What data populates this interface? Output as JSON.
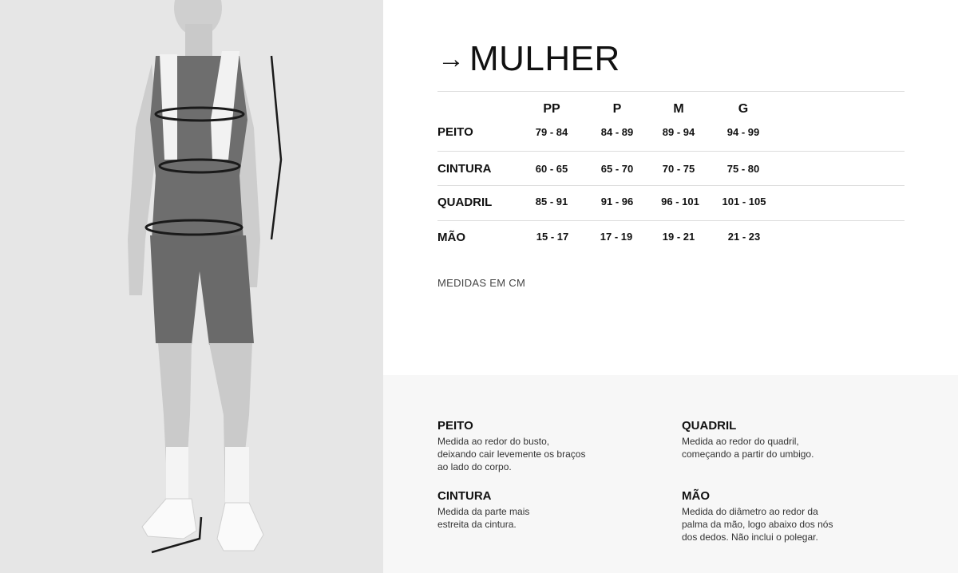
{
  "title": "MULHER",
  "title_icon": "arrow-right-icon",
  "table": {
    "columns": [
      "PP",
      "P",
      "M",
      "G"
    ],
    "rows": [
      {
        "label": "PEITO",
        "values": [
          "79 - 84",
          "84 - 89",
          "89 - 94",
          "94 - 99"
        ]
      },
      {
        "label": "CINTURA",
        "values": [
          "60 - 65",
          "65 - 70",
          "70 - 75",
          "75 - 80"
        ]
      },
      {
        "label": "QUADRIL",
        "values": [
          "85 - 91",
          "91 - 96",
          "96 - 101",
          "101 - 105"
        ]
      },
      {
        "label": "MÃO",
        "values": [
          "15 - 17",
          "17 - 19",
          "19 - 21",
          "21 - 23"
        ]
      }
    ]
  },
  "note": "MEDIDAS EM CM",
  "definitions": [
    {
      "title": "PEITO",
      "text": "Medida ao redor do busto,\ndeixando cair levemente os braços\nao lado do corpo."
    },
    {
      "title": "CINTURA",
      "text": "Medida da parte mais\nestreita da cintura."
    },
    {
      "title": "QUADRIL",
      "text": "Medida ao redor do quadril,\ncomeçando a partir do umbigo."
    },
    {
      "title": "MÃO",
      "text": "Medida do diâmetro ao redor da\npalma da mão, logo abaixo dos nós\ndos dedos. Não inclui o polegar."
    }
  ]
}
